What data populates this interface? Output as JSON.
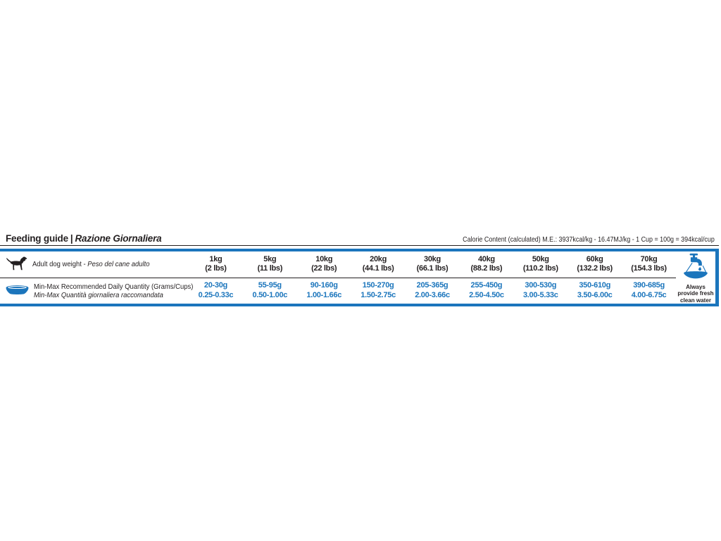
{
  "colors": {
    "accent_blue": "#1B75BC",
    "text_black": "#231F20",
    "background": "#FFFFFF"
  },
  "header": {
    "title_en": "Feeding guide",
    "separator": "|",
    "title_it": "Razione Giornaliera",
    "calorie_info": "Calorie Content (calculated) M.E.: 3937kcal/kg - 16.47MJ/kg - 1 Cup = 100g = 394kcal/cup"
  },
  "table": {
    "weight_row_label_en": "Adult dog weight - ",
    "weight_row_label_it": "Peso del cane adulto",
    "quantity_row_label_en": "Min-Max Recommended Daily Quantity (Grams/Cups)",
    "quantity_row_label_it": "Min-Max Quantità giornaliera raccomandata",
    "columns": [
      {
        "weight_kg": "1kg",
        "weight_lbs": "(2 lbs)",
        "grams": "20-30g",
        "cups": "0.25-0.33c"
      },
      {
        "weight_kg": "5kg",
        "weight_lbs": "(11 lbs)",
        "grams": "55-95g",
        "cups": "0.50-1.00c"
      },
      {
        "weight_kg": "10kg",
        "weight_lbs": "(22 lbs)",
        "grams": "90-160g",
        "cups": "1.00-1.66c"
      },
      {
        "weight_kg": "20kg",
        "weight_lbs": "(44.1 lbs)",
        "grams": "150-270g",
        "cups": "1.50-2.75c"
      },
      {
        "weight_kg": "30kg",
        "weight_lbs": "(66.1 lbs)",
        "grams": "205-365g",
        "cups": "2.00-3.66c"
      },
      {
        "weight_kg": "40kg",
        "weight_lbs": "(88.2 lbs)",
        "grams": "255-450g",
        "cups": "2.50-4.50c"
      },
      {
        "weight_kg": "50kg",
        "weight_lbs": "(110.2 lbs)",
        "grams": "300-530g",
        "cups": "3.00-5.33c"
      },
      {
        "weight_kg": "60kg",
        "weight_lbs": "(132.2 lbs)",
        "grams": "350-610g",
        "cups": "3.50-6.00c"
      },
      {
        "weight_kg": "70kg",
        "weight_lbs": "(154.3 lbs)",
        "grams": "390-685g",
        "cups": "4.00-6.75c"
      }
    ],
    "water_note": "Always provide fresh clean water"
  },
  "icons": {
    "dog": "dog-silhouette-icon",
    "bowl": "food-bowl-icon",
    "tap": "water-tap-icon"
  }
}
